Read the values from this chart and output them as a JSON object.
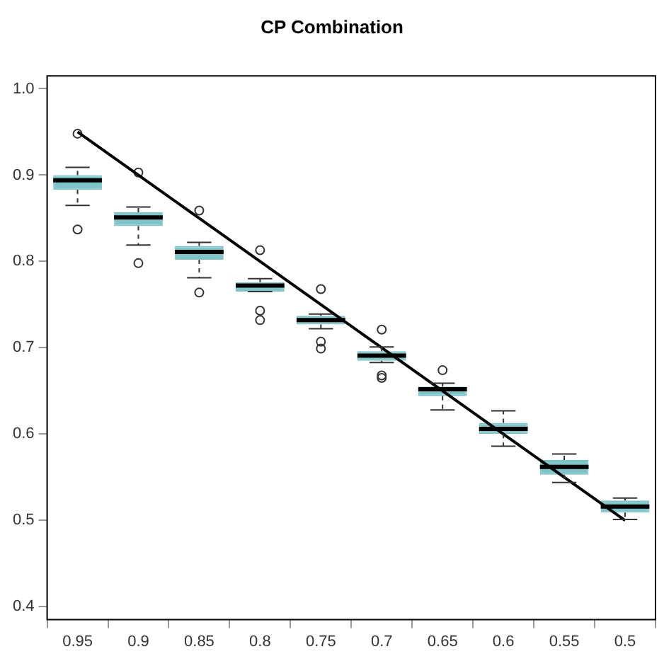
{
  "chart_data": {
    "type": "box",
    "title": "CP Combination",
    "categories": [
      "0.95",
      "0.9",
      "0.85",
      "0.8",
      "0.75",
      "0.7",
      "0.65",
      "0.6",
      "0.55",
      "0.5"
    ],
    "color": "#7fc4c9",
    "boxes": [
      {
        "low": 0.865,
        "q1": 0.883,
        "median": 0.894,
        "q3": 0.9,
        "high": 0.909,
        "outliers": [
          0.837,
          0.948
        ]
      },
      {
        "low": 0.819,
        "q1": 0.841,
        "median": 0.851,
        "q3": 0.857,
        "high": 0.863,
        "outliers": [
          0.798,
          0.903
        ]
      },
      {
        "low": 0.781,
        "q1": 0.802,
        "median": 0.811,
        "q3": 0.818,
        "high": 0.822,
        "outliers": [
          0.764,
          0.859
        ]
      },
      {
        "low": 0.765,
        "q1": 0.765,
        "median": 0.772,
        "q3": 0.776,
        "high": 0.78,
        "outliers": [
          0.743,
          0.732,
          0.813
        ]
      },
      {
        "low": 0.722,
        "q1": 0.727,
        "median": 0.732,
        "q3": 0.737,
        "high": 0.739,
        "outliers": [
          0.707,
          0.699,
          0.768
        ]
      },
      {
        "low": 0.683,
        "q1": 0.685,
        "median": 0.691,
        "q3": 0.696,
        "high": 0.701,
        "outliers": [
          0.668,
          0.665,
          0.721
        ]
      },
      {
        "low": 0.628,
        "q1": 0.644,
        "median": 0.652,
        "q3": 0.655,
        "high": 0.659,
        "outliers": [
          0.674
        ]
      },
      {
        "low": 0.586,
        "q1": 0.6,
        "median": 0.606,
        "q3": 0.613,
        "high": 0.627
      },
      {
        "low": 0.544,
        "q1": 0.553,
        "median": 0.562,
        "q3": 0.57,
        "high": 0.577
      },
      {
        "low": 0.501,
        "q1": 0.509,
        "median": 0.516,
        "q3": 0.523,
        "high": 0.526
      }
    ],
    "series": [
      {
        "type": "line",
        "color": "#000000",
        "values": [
          0.95,
          0.9,
          0.85,
          0.8,
          0.75,
          0.7,
          0.65,
          0.6,
          0.55,
          0.5
        ]
      }
    ],
    "ylim": [
      0.385,
      1.015
    ],
    "yticks": [
      0.4,
      0.5,
      0.6,
      0.7,
      0.8,
      0.9,
      {
        "value": 1,
        "label": "1.0"
      }
    ],
    "grid": false
  }
}
